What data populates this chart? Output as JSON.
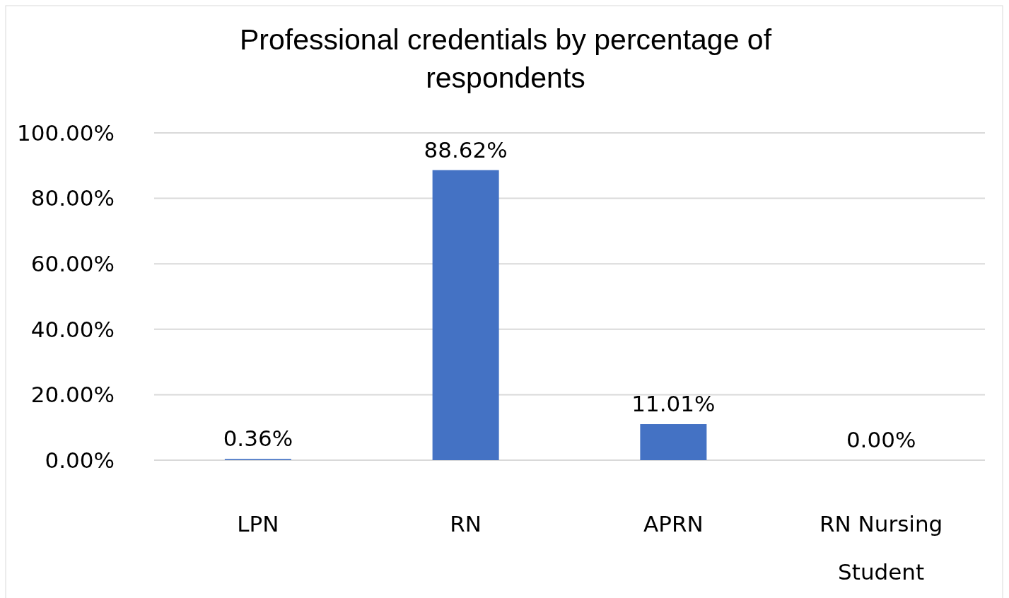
{
  "chart_data": {
    "type": "bar",
    "title": "Professional credentials by percentage of respondents",
    "categories": [
      "LPN",
      "RN",
      "APRN",
      "RN Nursing Student"
    ],
    "values": [
      0.36,
      88.62,
      11.01,
      0.0
    ],
    "value_labels": [
      "0.36%",
      "88.62%",
      "11.01%",
      "0.00%"
    ],
    "color": "#4472c4",
    "ylim": [
      0,
      100
    ],
    "yticks": [
      {
        "value": 0,
        "label": "0.00%"
      },
      {
        "value": 20,
        "label": "20.00%"
      },
      {
        "value": 40,
        "label": "40.00%"
      },
      {
        "value": 60,
        "label": "60.00%"
      },
      {
        "value": 80,
        "label": "80.00%"
      },
      {
        "value": 100,
        "label": "100.00%"
      }
    ],
    "grid": "y"
  }
}
